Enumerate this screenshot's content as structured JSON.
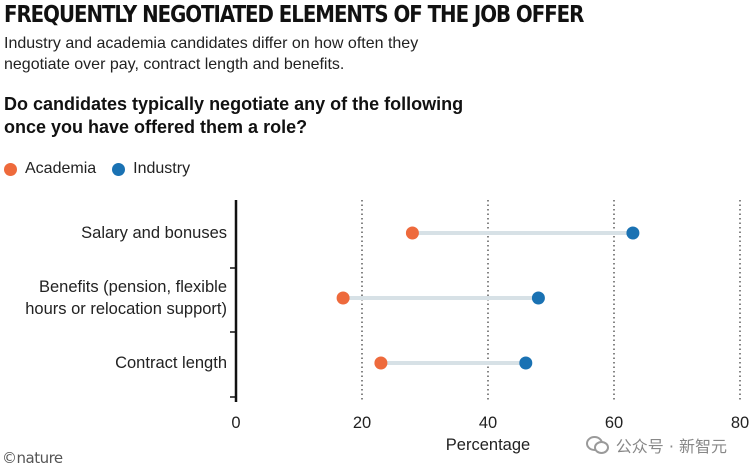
{
  "header": {
    "headline": "FREQUENTLY NEGOTIATED ELEMENTS OF THE JOB OFFER",
    "subtitle": "Industry and academia candidates differ on how often they negotiate over pay, contract length and benefits.",
    "question": "Do candidates typically negotiate any of the following once you have offered them a role?"
  },
  "legend": {
    "academia": "Academia",
    "industry": "Industry"
  },
  "footer": {
    "credit": "©nature",
    "watermark": "公众号 · 新智元"
  },
  "colors": {
    "academia": "#ee6a3c",
    "industry": "#1a72b3",
    "connector": "#d7e1e6",
    "gridline": "#444444",
    "axis": "#111111"
  },
  "chart_data": {
    "type": "dumbbell",
    "categories": [
      [
        "Salary and bonuses"
      ],
      [
        "Benefits (pension, flexible",
        "hours or relocation support)"
      ],
      [
        "Contract length"
      ]
    ],
    "series": [
      {
        "name": "Academia",
        "values": [
          28,
          17,
          23
        ]
      },
      {
        "name": "Industry",
        "values": [
          63,
          48,
          46
        ]
      }
    ],
    "xlabel": "Percentage",
    "xlim": [
      0,
      80
    ],
    "xticks": [
      0,
      20,
      40,
      60,
      80
    ],
    "grid": true
  }
}
